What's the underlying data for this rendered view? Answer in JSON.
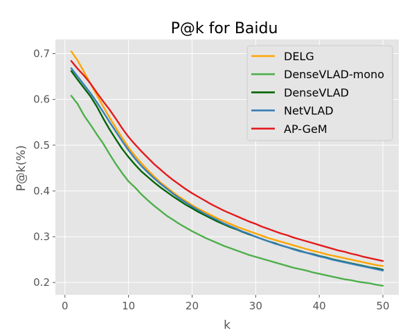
{
  "chart_data": {
    "type": "line",
    "title": "P@k for Baidu",
    "xlabel": "k",
    "ylabel": "P@k(%)",
    "xlim": [
      -1.5,
      52.5
    ],
    "ylim": [
      0.173,
      0.731
    ],
    "xticks": [
      0,
      10,
      20,
      30,
      40,
      50
    ],
    "yticks": [
      0.2,
      0.3,
      0.4,
      0.5,
      0.6,
      0.7
    ],
    "ytick_labels": [
      "0.2",
      "0.3",
      "0.4",
      "0.5",
      "0.6",
      "0.7"
    ],
    "grid": true,
    "legend_position": "top-right",
    "background": "#e5e5e5",
    "x": [
      1,
      2,
      3,
      4,
      5,
      6,
      7,
      8,
      9,
      10,
      11,
      12,
      13,
      14,
      15,
      16,
      17,
      18,
      19,
      20,
      21,
      22,
      23,
      24,
      25,
      26,
      27,
      28,
      29,
      30,
      31,
      32,
      33,
      34,
      35,
      36,
      37,
      38,
      39,
      40,
      41,
      42,
      43,
      44,
      45,
      46,
      47,
      48,
      49,
      50
    ],
    "series": [
      {
        "name": "DELG",
        "color": "#ffa500",
        "values": [
          0.705,
          0.685,
          0.66,
          0.635,
          0.61,
          0.585,
          0.561,
          0.538,
          0.516,
          0.495,
          0.477,
          0.461,
          0.446,
          0.432,
          0.419,
          0.408,
          0.397,
          0.387,
          0.378,
          0.369,
          0.361,
          0.354,
          0.347,
          0.34,
          0.334,
          0.328,
          0.322,
          0.317,
          0.312,
          0.307,
          0.302,
          0.297,
          0.293,
          0.289,
          0.285,
          0.281,
          0.277,
          0.273,
          0.269,
          0.266,
          0.262,
          0.259,
          0.256,
          0.253,
          0.25,
          0.247,
          0.244,
          0.241,
          0.238,
          0.236
        ]
      },
      {
        "name": "DenseVLAD-mono",
        "color": "#4daf4a",
        "values": [
          0.608,
          0.59,
          0.565,
          0.545,
          0.524,
          0.504,
          0.481,
          0.459,
          0.439,
          0.421,
          0.408,
          0.393,
          0.38,
          0.368,
          0.357,
          0.346,
          0.337,
          0.328,
          0.32,
          0.312,
          0.305,
          0.298,
          0.292,
          0.286,
          0.28,
          0.275,
          0.27,
          0.265,
          0.26,
          0.256,
          0.252,
          0.248,
          0.244,
          0.24,
          0.236,
          0.232,
          0.229,
          0.226,
          0.222,
          0.219,
          0.216,
          0.213,
          0.21,
          0.207,
          0.205,
          0.202,
          0.2,
          0.198,
          0.195,
          0.193
        ]
      },
      {
        "name": "DenseVLAD",
        "color": "#006400",
        "values": [
          0.662,
          0.643,
          0.625,
          0.607,
          0.585,
          0.559,
          0.535,
          0.513,
          0.492,
          0.474,
          0.458,
          0.443,
          0.431,
          0.419,
          0.408,
          0.398,
          0.388,
          0.379,
          0.37,
          0.362,
          0.354,
          0.347,
          0.34,
          0.333,
          0.327,
          0.321,
          0.316,
          0.31,
          0.305,
          0.3,
          0.295,
          0.29,
          0.286,
          0.281,
          0.277,
          0.273,
          0.269,
          0.265,
          0.262,
          0.258,
          0.255,
          0.251,
          0.248,
          0.245,
          0.242,
          0.239,
          0.236,
          0.233,
          0.231,
          0.228
        ]
      },
      {
        "name": "NetVLAD",
        "color": "#377eb8",
        "values": [
          0.668,
          0.65,
          0.632,
          0.614,
          0.594,
          0.573,
          0.551,
          0.53,
          0.509,
          0.489,
          0.471,
          0.455,
          0.441,
          0.428,
          0.416,
          0.405,
          0.394,
          0.384,
          0.375,
          0.366,
          0.358,
          0.35,
          0.343,
          0.336,
          0.329,
          0.323,
          0.317,
          0.311,
          0.306,
          0.3,
          0.295,
          0.29,
          0.285,
          0.281,
          0.277,
          0.272,
          0.268,
          0.265,
          0.261,
          0.257,
          0.254,
          0.25,
          0.247,
          0.244,
          0.241,
          0.238,
          0.235,
          0.232,
          0.229,
          0.226
        ]
      },
      {
        "name": "AP-GeM",
        "color": "#e41a1c",
        "values": [
          0.684,
          0.667,
          0.652,
          0.635,
          0.615,
          0.596,
          0.578,
          0.558,
          0.537,
          0.518,
          0.502,
          0.487,
          0.473,
          0.459,
          0.447,
          0.435,
          0.424,
          0.414,
          0.404,
          0.395,
          0.387,
          0.379,
          0.371,
          0.364,
          0.357,
          0.351,
          0.345,
          0.339,
          0.333,
          0.328,
          0.322,
          0.317,
          0.312,
          0.307,
          0.303,
          0.298,
          0.294,
          0.29,
          0.286,
          0.282,
          0.278,
          0.274,
          0.27,
          0.267,
          0.263,
          0.26,
          0.256,
          0.253,
          0.25,
          0.247
        ]
      }
    ]
  }
}
